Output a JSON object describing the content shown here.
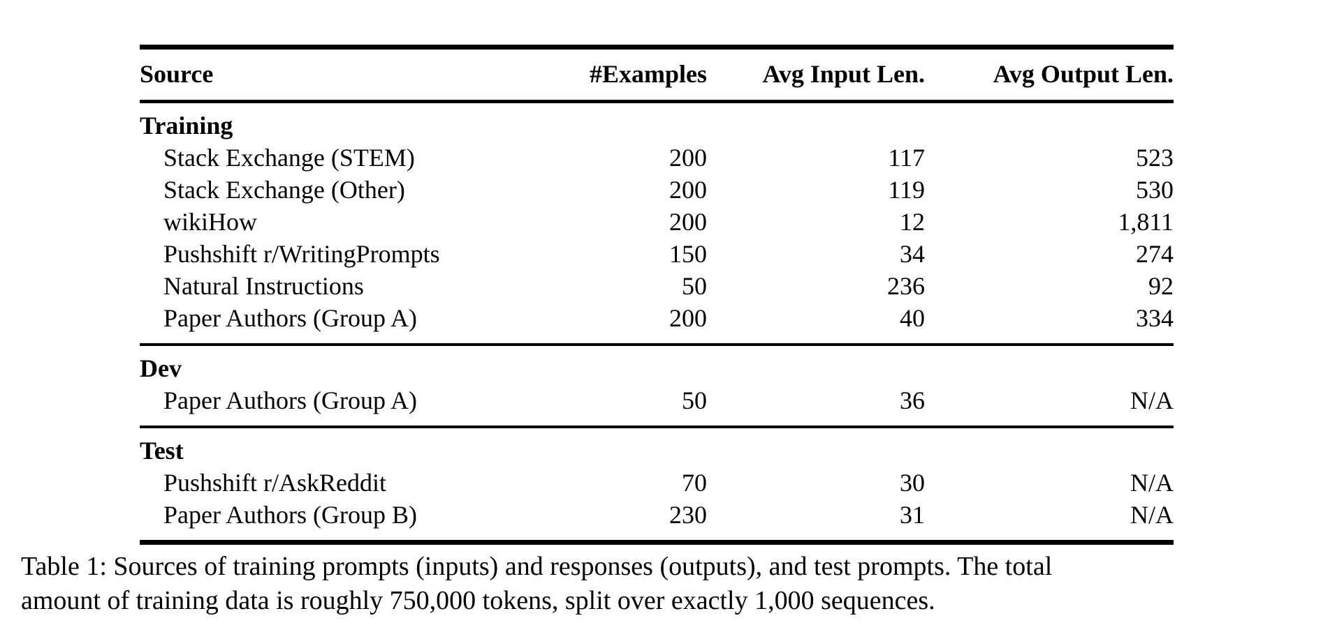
{
  "table": {
    "columns": [
      "Source",
      "#Examples",
      "Avg Input Len.",
      "Avg Output Len."
    ],
    "sections": [
      {
        "label": "Training",
        "rows": [
          {
            "source": "Stack Exchange (STEM)",
            "examples": "200",
            "avg_input_len": "117",
            "avg_output_len": "523"
          },
          {
            "source": "Stack Exchange (Other)",
            "examples": "200",
            "avg_input_len": "119",
            "avg_output_len": "530"
          },
          {
            "source": "wikiHow",
            "examples": "200",
            "avg_input_len": "12",
            "avg_output_len": "1,811"
          },
          {
            "source": "Pushshift r/WritingPrompts",
            "examples": "150",
            "avg_input_len": "34",
            "avg_output_len": "274"
          },
          {
            "source": "Natural Instructions",
            "examples": "50",
            "avg_input_len": "236",
            "avg_output_len": "92"
          },
          {
            "source": "Paper Authors (Group A)",
            "examples": "200",
            "avg_input_len": "40",
            "avg_output_len": "334"
          }
        ]
      },
      {
        "label": "Dev",
        "rows": [
          {
            "source": "Paper Authors (Group A)",
            "examples": "50",
            "avg_input_len": "36",
            "avg_output_len": "N/A"
          }
        ]
      },
      {
        "label": "Test",
        "rows": [
          {
            "source": "Pushshift r/AskReddit",
            "examples": "70",
            "avg_input_len": "30",
            "avg_output_len": "N/A"
          },
          {
            "source": "Paper Authors (Group B)",
            "examples": "230",
            "avg_input_len": "31",
            "avg_output_len": "N/A"
          }
        ]
      }
    ]
  },
  "caption": {
    "line1": "Table 1: Sources of training prompts (inputs) and responses (outputs), and test prompts. The total",
    "line2": "amount of training data is roughly 750,000 tokens, split over exactly 1,000 sequences."
  }
}
